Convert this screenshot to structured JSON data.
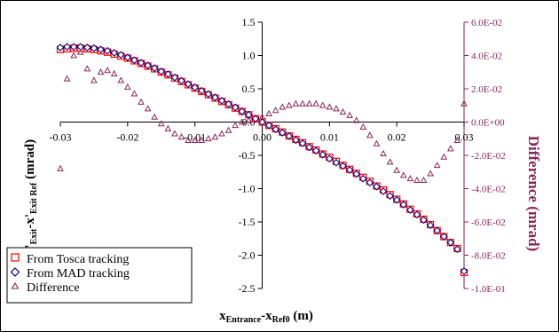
{
  "chart_data": {
    "type": "scatter",
    "x_axis": {
      "title_main": "x",
      "title_sub": "Entrance",
      "title_mid": "-x",
      "title_sub2": "Ref0",
      "title_unit": " (m)",
      "range": [
        -0.03,
        0.03
      ],
      "ticks": [
        "-0.03",
        "-0.02",
        "-0.01",
        "0.00",
        "0.01",
        "0.02",
        "0.03"
      ]
    },
    "y_axis_left": {
      "title_main": "x'",
      "title_sub": "Exit",
      "title_mid": "-x'",
      "title_sub2": "Exit Ref",
      "title_unit": " (mrad)",
      "range": [
        -2.5,
        1.5
      ],
      "ticks": [
        "1.5",
        "1.0",
        "0.5",
        "0.0",
        "-0.5",
        "-1.0",
        "-1.5",
        "-2.0",
        "-2.5"
      ]
    },
    "y_axis_right": {
      "title": "Difference (mrad)",
      "range": [
        -0.1,
        0.06
      ],
      "ticks": [
        "6.0E-02",
        "4.0E-02",
        "2.0E-02",
        "0.0E+00",
        "-2.0E-02",
        "-4.0E-02",
        "-6.0E-02",
        "-8.0E-02",
        "-1.0E-01"
      ]
    },
    "series": [
      {
        "name": "From Tosca tracking",
        "axis": "left",
        "marker": "square",
        "color": "#ff0000"
      },
      {
        "name": "From MAD tracking",
        "axis": "left",
        "marker": "diamond",
        "color": "#000080"
      },
      {
        "name": "Difference",
        "axis": "right",
        "marker": "triangle",
        "color": "#8b2558"
      }
    ],
    "x_values": [
      -0.03,
      -0.029,
      -0.028,
      -0.027,
      -0.026,
      -0.025,
      -0.024,
      -0.023,
      -0.022,
      -0.021,
      -0.02,
      -0.019,
      -0.018,
      -0.017,
      -0.016,
      -0.015,
      -0.014,
      -0.013,
      -0.012,
      -0.011,
      -0.01,
      -0.009,
      -0.008,
      -0.007,
      -0.006,
      -0.005,
      -0.004,
      -0.003,
      -0.002,
      -0.001,
      0.0,
      0.001,
      0.002,
      0.003,
      0.004,
      0.005,
      0.006,
      0.007,
      0.008,
      0.009,
      0.01,
      0.011,
      0.012,
      0.013,
      0.014,
      0.015,
      0.016,
      0.017,
      0.018,
      0.019,
      0.02,
      0.021,
      0.022,
      0.023,
      0.024,
      0.025,
      0.026,
      0.027,
      0.028,
      0.029,
      0.03
    ],
    "tosca_values": [
      1.09,
      1.1,
      1.11,
      1.11,
      1.1,
      1.09,
      1.07,
      1.05,
      1.02,
      0.99,
      0.96,
      0.92,
      0.88,
      0.84,
      0.8,
      0.75,
      0.71,
      0.66,
      0.61,
      0.56,
      0.51,
      0.46,
      0.41,
      0.36,
      0.31,
      0.26,
      0.21,
      0.16,
      0.11,
      0.05,
      0.0,
      -0.05,
      -0.1,
      -0.15,
      -0.21,
      -0.26,
      -0.31,
      -0.37,
      -0.42,
      -0.48,
      -0.53,
      -0.59,
      -0.65,
      -0.71,
      -0.77,
      -0.83,
      -0.89,
      -0.96,
      -1.02,
      -1.09,
      -1.16,
      -1.23,
      -1.31,
      -1.38,
      -1.46,
      -1.54,
      -1.63,
      -1.72,
      -1.81,
      -1.9,
      -2.26
    ],
    "mad_values": [
      1.12,
      1.13,
      1.13,
      1.13,
      1.12,
      1.11,
      1.09,
      1.07,
      1.04,
      1.01,
      0.97,
      0.93,
      0.89,
      0.85,
      0.81,
      0.76,
      0.72,
      0.67,
      0.62,
      0.57,
      0.52,
      0.47,
      0.42,
      0.37,
      0.32,
      0.27,
      0.22,
      0.16,
      0.11,
      0.05,
      0.0,
      -0.05,
      -0.11,
      -0.16,
      -0.21,
      -0.27,
      -0.32,
      -0.38,
      -0.43,
      -0.49,
      -0.55,
      -0.61,
      -0.66,
      -0.72,
      -0.78,
      -0.85,
      -0.91,
      -0.97,
      -1.04,
      -1.11,
      -1.17,
      -1.24,
      -1.32,
      -1.39,
      -1.47,
      -1.55,
      -1.63,
      -1.72,
      -1.81,
      -1.91,
      -2.24
    ],
    "difference_values": [
      -0.028,
      0.026,
      0.04,
      0.042,
      0.032,
      0.025,
      0.03,
      0.031,
      0.029,
      0.025,
      0.021,
      0.017,
      0.012,
      0.008,
      0.003,
      -0.001,
      -0.004,
      -0.007,
      -0.009,
      -0.011,
      -0.011,
      -0.011,
      -0.01,
      -0.009,
      -0.007,
      -0.005,
      -0.002,
      0.0,
      0.001,
      0.002,
      0.003,
      0.005,
      0.007,
      0.009,
      0.01,
      0.011,
      0.011,
      0.011,
      0.011,
      0.01,
      0.009,
      0.008,
      0.006,
      0.004,
      0.001,
      -0.003,
      -0.008,
      -0.013,
      -0.019,
      -0.024,
      -0.029,
      -0.032,
      -0.034,
      -0.035,
      -0.035,
      -0.031,
      -0.026,
      -0.021,
      -0.016,
      -0.011,
      0.011
    ]
  },
  "legend": {
    "items": [
      "From Tosca tracking",
      "From MAD tracking",
      "Difference"
    ]
  }
}
